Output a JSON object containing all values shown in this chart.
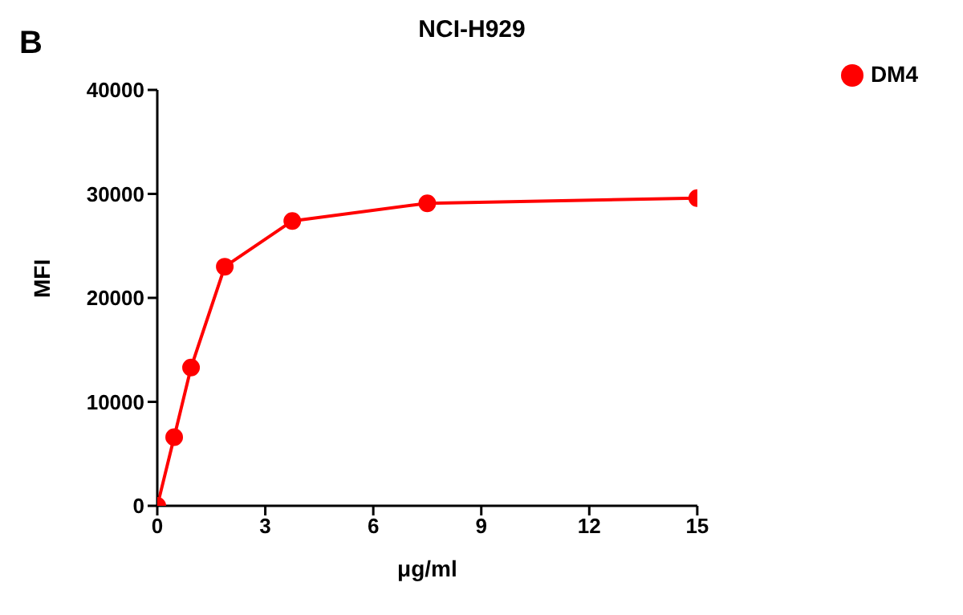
{
  "chart_data": {
    "type": "line",
    "title": "NCI-H929",
    "annotations": [
      "B"
    ],
    "xlabel": "μg/ml",
    "ylabel": "MFI",
    "x": [
      0,
      0.469,
      0.9375,
      1.875,
      3.75,
      7.5,
      15
    ],
    "series": [
      {
        "name": "DM4",
        "color": "#ff0000",
        "values": [
          0,
          6600,
          13300,
          23000,
          27400,
          29100,
          29600
        ]
      }
    ],
    "xlim": [
      0,
      15
    ],
    "xticks": [
      0,
      3,
      6,
      9,
      12,
      15
    ],
    "ylim": [
      0,
      40000
    ],
    "yticks": [
      0,
      10000,
      20000,
      30000,
      40000
    ],
    "grid": false,
    "legend": "top right",
    "marker": "circle",
    "line_style": "solid"
  }
}
